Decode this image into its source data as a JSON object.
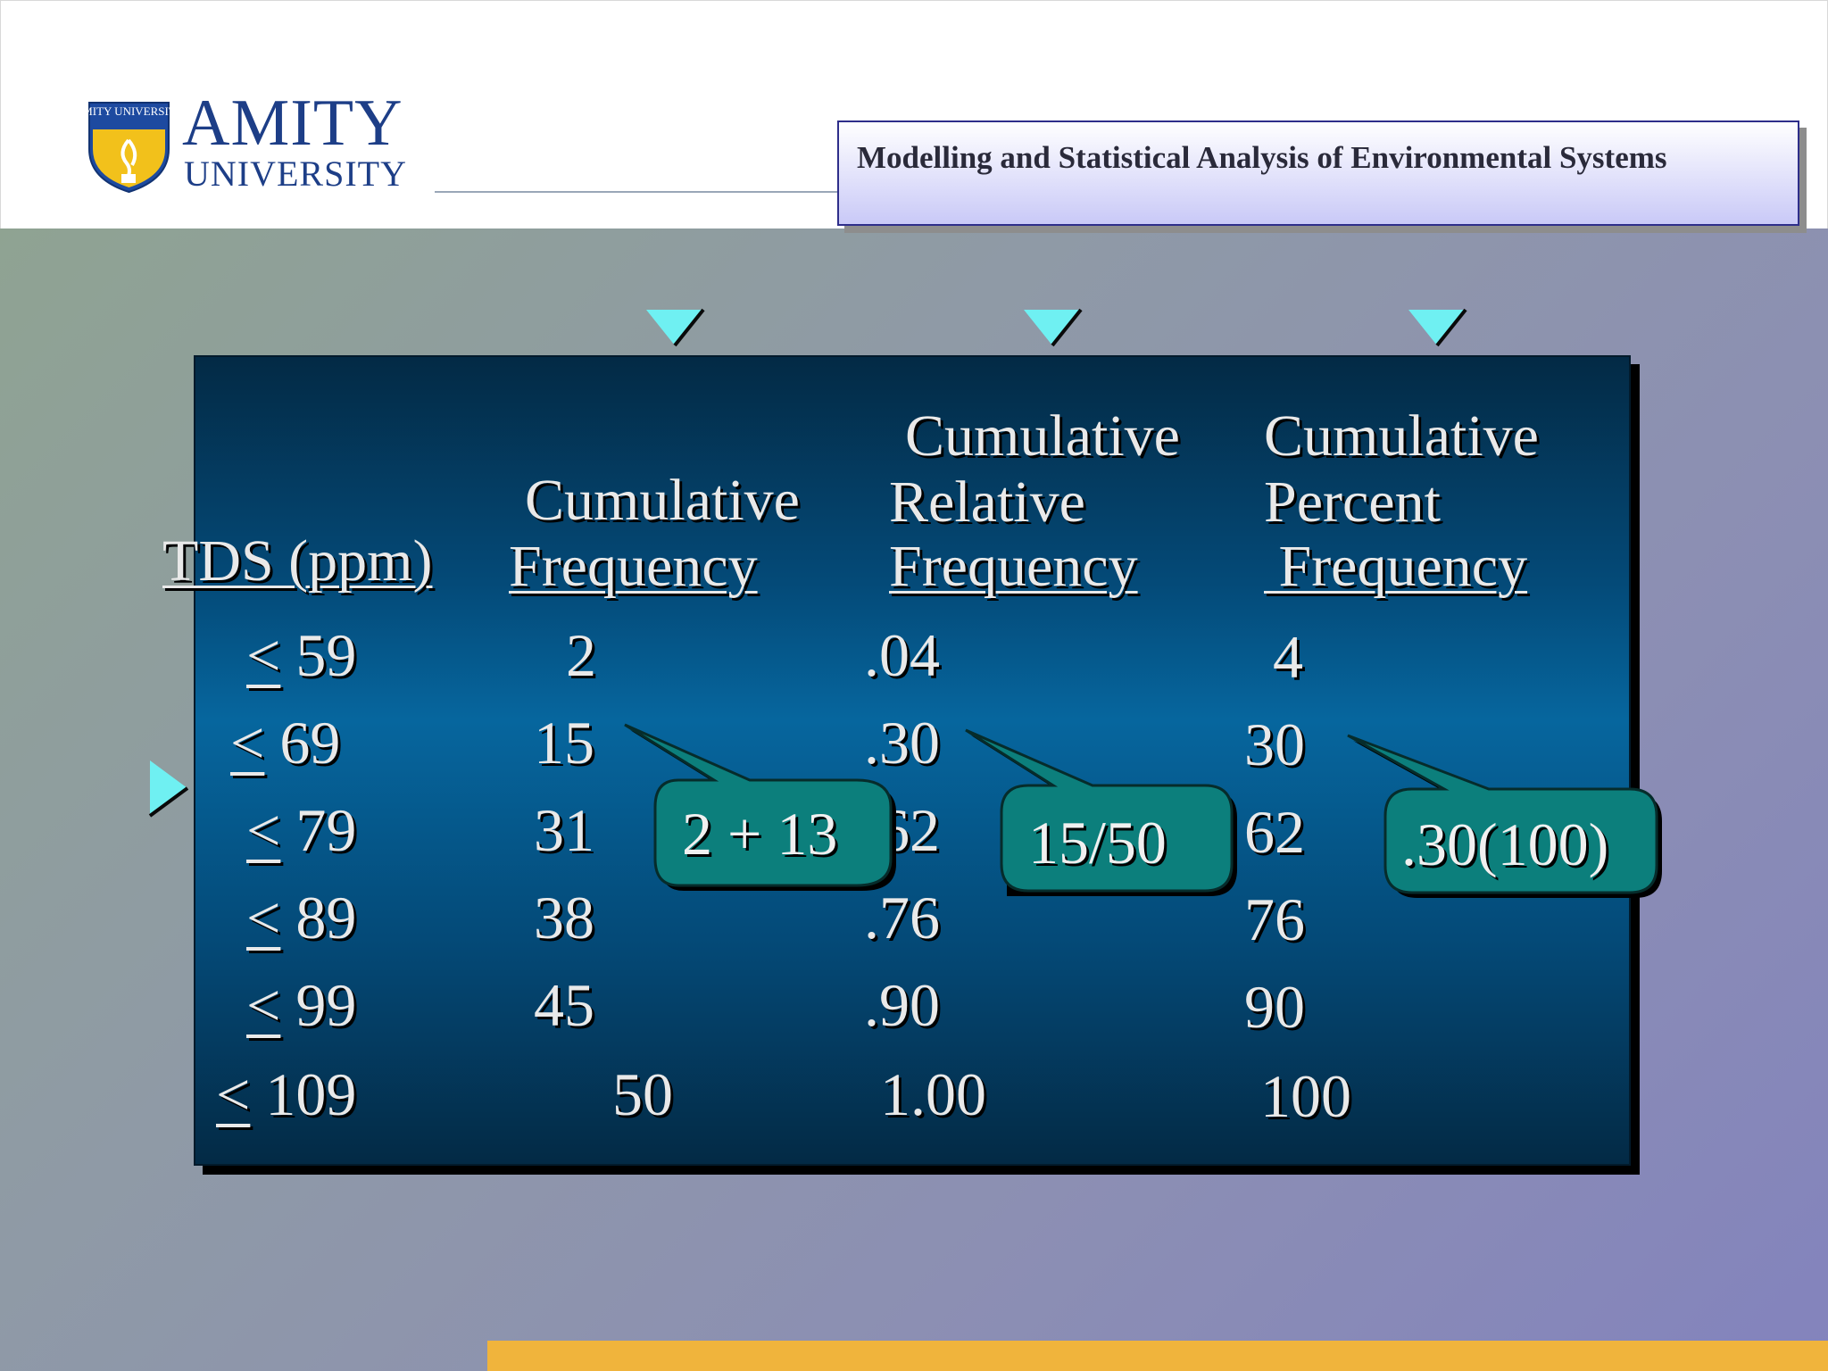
{
  "header": {
    "logo_text": "AMITY",
    "logo_subtext": "UNIVERSITY",
    "logo_badge_text": "AMITY UNIVERSITY",
    "title": "Modelling and Statistical Analysis of Environmental Systems"
  },
  "table": {
    "headers": {
      "tds": "TDS (ppm)",
      "cum_freq_line1": "Cumulative",
      "cum_freq_line2": "Frequency",
      "cum_rel_line1": "Cumulative",
      "cum_rel_line2": "Relative",
      "cum_rel_line3": "Frequency",
      "cum_pct_line1": "Cumulative",
      "cum_pct_line2": "Percent",
      "cum_pct_line3": " Frequency"
    },
    "le_symbol": "<",
    "rows": [
      {
        "tds": "59",
        "cum_freq": "2",
        "cum_rel": ".04",
        "cum_pct": "4"
      },
      {
        "tds": "69",
        "cum_freq": "15",
        "cum_rel": ".30",
        "cum_pct": "30"
      },
      {
        "tds": "79",
        "cum_freq": "31",
        "cum_rel": ".62",
        "cum_pct": "62"
      },
      {
        "tds": "89",
        "cum_freq": "38",
        "cum_rel": ".76",
        "cum_pct": "76"
      },
      {
        "tds": "99",
        "cum_freq": "45",
        "cum_rel": ".90",
        "cum_pct": "90"
      },
      {
        "tds": "109",
        "cum_freq": "50",
        "cum_rel": "1.00",
        "cum_pct": "100"
      }
    ]
  },
  "callouts": {
    "cum_freq": "2 + 13",
    "cum_rel": "15/50",
    "cum_pct": ".30(100)"
  },
  "colors": {
    "marker": "#6ff0f2",
    "callout_fill": "#0c7f7c",
    "accent_bar": "#f0b43c",
    "panel": "#044a78"
  }
}
